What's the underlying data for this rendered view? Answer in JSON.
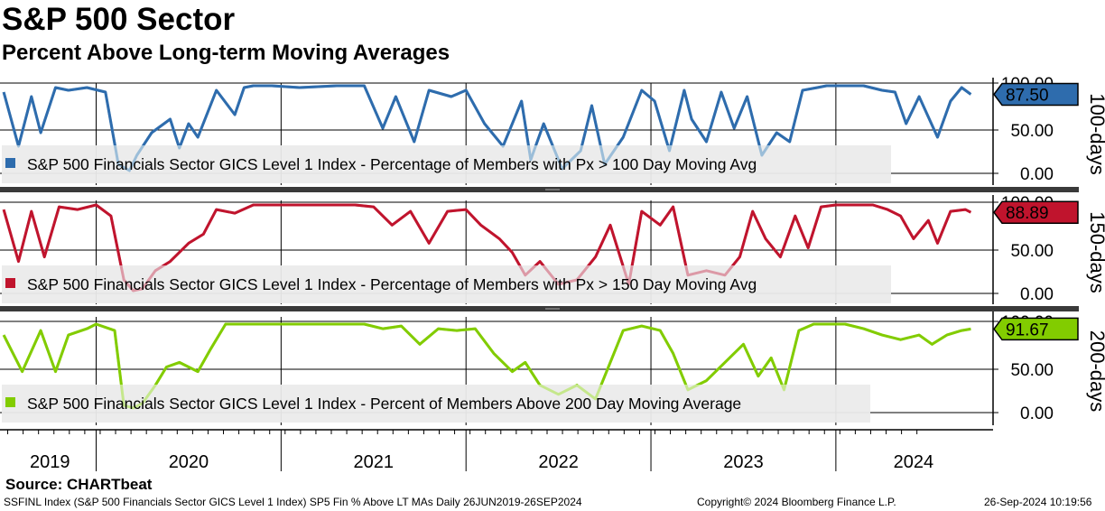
{
  "title": "S&P 500 Sector",
  "subtitle": "Percent Above Long-term Moving Averages",
  "source": "Source: CHARTbeat",
  "footer": {
    "left": "SSFINL Index (S&P 500 Financials Sector GICS Level 1 Index) SP5 Fin % Above LT MAs  Daily 26JUN2019-26SEP2024",
    "center": "Copyright© 2024 Bloomberg Finance L.P.",
    "right": "26-Sep-2024 10:19:56"
  },
  "chart_data": [
    {
      "type": "line",
      "panel_label": "100-days",
      "legend": "S&P 500 Financials Sector GICS Level 1 Index - Percentage of Members with Px > 100 Day Moving Avg",
      "color": "#2e6cad",
      "light_color": "#9bbdd8",
      "last_value": "87.50",
      "ylim": [
        0,
        100
      ],
      "y_ticks": [
        "100.00",
        "50.00",
        "0.00"
      ],
      "x": [
        2019.5,
        2019.58,
        2019.65,
        2019.7,
        2019.78,
        2019.85,
        2019.95,
        2020.05,
        2020.12,
        2020.18,
        2020.22,
        2020.3,
        2020.4,
        2020.45,
        2020.5,
        2020.55,
        2020.65,
        2020.75,
        2020.8,
        2020.85,
        2020.95,
        2021.1,
        2021.3,
        2021.45,
        2021.55,
        2021.62,
        2021.72,
        2021.8,
        2021.92,
        2022.0,
        2022.1,
        2022.2,
        2022.3,
        2022.35,
        2022.42,
        2022.52,
        2022.62,
        2022.68,
        2022.75,
        2022.85,
        2022.95,
        2023.02,
        2023.1,
        2023.18,
        2023.22,
        2023.3,
        2023.38,
        2023.45,
        2023.52,
        2023.6,
        2023.68,
        2023.75,
        2023.82,
        2023.9,
        2023.95,
        2024.05,
        2024.15,
        2024.25,
        2024.32,
        2024.38,
        2024.45,
        2024.55,
        2024.62,
        2024.68,
        2024.73
      ],
      "values": [
        90,
        30,
        85,
        45,
        95,
        92,
        95,
        90,
        10,
        3,
        20,
        45,
        60,
        28,
        55,
        40,
        92,
        65,
        95,
        97,
        97,
        95,
        97,
        97,
        50,
        85,
        35,
        92,
        85,
        92,
        55,
        30,
        80,
        15,
        55,
        5,
        25,
        75,
        10,
        40,
        92,
        80,
        25,
        92,
        60,
        35,
        90,
        50,
        85,
        20,
        45,
        35,
        92,
        95,
        97,
        97,
        97,
        92,
        90,
        55,
        85,
        40,
        80,
        95,
        87.5
      ]
    },
    {
      "type": "line",
      "panel_label": "150-days",
      "legend": "S&P 500 Financials Sector GICS Level 1 Index - Percentage of Members with Px > 150 Day Moving Avg",
      "color": "#c0142d",
      "light_color": "#dc99a6",
      "last_value": "88.89",
      "ylim": [
        0,
        100
      ],
      "y_ticks": [
        "100.00",
        "50.00",
        "0.00"
      ],
      "x": [
        2019.5,
        2019.58,
        2019.65,
        2019.72,
        2019.8,
        2019.9,
        2020.0,
        2020.08,
        2020.15,
        2020.2,
        2020.25,
        2020.32,
        2020.4,
        2020.5,
        2020.58,
        2020.65,
        2020.75,
        2020.85,
        2021.0,
        2021.2,
        2021.4,
        2021.5,
        2021.6,
        2021.7,
        2021.8,
        2021.9,
        2022.0,
        2022.08,
        2022.18,
        2022.25,
        2022.32,
        2022.4,
        2022.5,
        2022.6,
        2022.7,
        2022.78,
        2022.88,
        2022.95,
        2023.05,
        2023.12,
        2023.2,
        2023.3,
        2023.4,
        2023.48,
        2023.55,
        2023.62,
        2023.7,
        2023.78,
        2023.85,
        2023.92,
        2024.0,
        2024.1,
        2024.2,
        2024.28,
        2024.35,
        2024.42,
        2024.5,
        2024.55,
        2024.62,
        2024.7,
        2024.73
      ],
      "values": [
        92,
        35,
        90,
        40,
        95,
        92,
        97,
        85,
        15,
        3,
        5,
        25,
        35,
        55,
        65,
        92,
        88,
        97,
        97,
        97,
        97,
        95,
        75,
        90,
        55,
        90,
        92,
        75,
        60,
        45,
        20,
        35,
        10,
        15,
        40,
        75,
        10,
        90,
        75,
        95,
        20,
        25,
        20,
        40,
        90,
        60,
        40,
        85,
        50,
        95,
        97,
        97,
        97,
        92,
        85,
        60,
        80,
        55,
        90,
        92,
        88.89
      ]
    },
    {
      "type": "line",
      "panel_label": "200-days",
      "legend": "S&P 500 Financials Sector GICS Level 1 Index - Percent of Members Above 200 Day Moving Average",
      "color": "#82cc00",
      "light_color": "#c5e78c",
      "last_value": "91.67",
      "ylim": [
        0,
        100
      ],
      "y_ticks": [
        "100.00",
        "50.00",
        "0.00"
      ],
      "x": [
        2019.5,
        2019.6,
        2019.7,
        2019.78,
        2019.85,
        2019.95,
        2020.0,
        2020.1,
        2020.15,
        2020.2,
        2020.25,
        2020.32,
        2020.38,
        2020.45,
        2020.55,
        2020.62,
        2020.7,
        2020.8,
        2021.0,
        2021.2,
        2021.45,
        2021.55,
        2021.65,
        2021.75,
        2021.85,
        2021.95,
        2022.05,
        2022.15,
        2022.25,
        2022.32,
        2022.4,
        2022.5,
        2022.6,
        2022.7,
        2022.78,
        2022.85,
        2022.95,
        2023.05,
        2023.12,
        2023.2,
        2023.3,
        2023.4,
        2023.5,
        2023.58,
        2023.65,
        2023.72,
        2023.8,
        2023.88,
        2023.95,
        2024.05,
        2024.15,
        2024.25,
        2024.35,
        2024.45,
        2024.52,
        2024.6,
        2024.68,
        2024.73
      ],
      "values": [
        85,
        45,
        90,
        45,
        85,
        92,
        97,
        90,
        8,
        5,
        10,
        30,
        50,
        55,
        45,
        70,
        97,
        97,
        97,
        97,
        97,
        92,
        95,
        75,
        92,
        90,
        92,
        65,
        45,
        55,
        30,
        20,
        30,
        15,
        55,
        90,
        95,
        90,
        65,
        25,
        35,
        55,
        75,
        40,
        60,
        25,
        90,
        97,
        97,
        97,
        92,
        85,
        80,
        85,
        75,
        85,
        90,
        91.67
      ]
    }
  ],
  "x_axis": {
    "labels": [
      "2019",
      "2020",
      "2021",
      "2022",
      "2023",
      "2024"
    ],
    "year_starts": [
      2020,
      2021,
      2022,
      2023,
      2024
    ],
    "label_positions": [
      2019.75,
      2020.5,
      2021.5,
      2022.5,
      2023.5,
      2024.42
    ],
    "range": [
      2019.48,
      2024.85
    ]
  }
}
